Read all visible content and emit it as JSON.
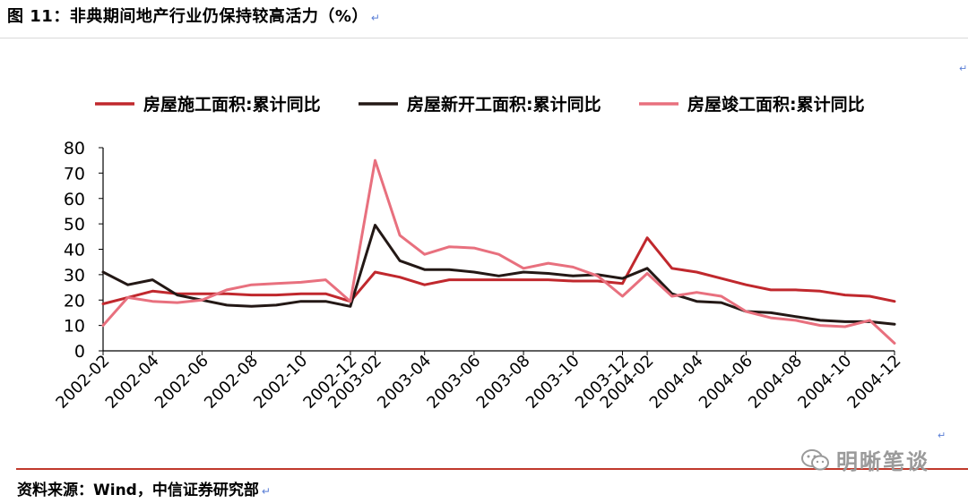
{
  "figure": {
    "title": "图 11：非典期间地产行业仍保持较高活力（%）",
    "source": "资料来源：Wind，中信证券研究部",
    "watermark": "明晰笔谈"
  },
  "chart_data": {
    "type": "line",
    "title": "",
    "xlabel": "",
    "ylabel": "",
    "ylim": [
      0,
      80
    ],
    "yticks": [
      0,
      10,
      20,
      30,
      40,
      50,
      60,
      70,
      80
    ],
    "grid": false,
    "legend_position": "top",
    "x": [
      "2002-02",
      "2002-03",
      "2002-04",
      "2002-05",
      "2002-06",
      "2002-07",
      "2002-08",
      "2002-09",
      "2002-10",
      "2002-11",
      "2002-12",
      "2003-02",
      "2003-03",
      "2003-04",
      "2003-05",
      "2003-06",
      "2003-07",
      "2003-08",
      "2003-09",
      "2003-10",
      "2003-11",
      "2003-12",
      "2004-02",
      "2004-03",
      "2004-04",
      "2004-05",
      "2004-06",
      "2004-07",
      "2004-08",
      "2004-09",
      "2004-10",
      "2004-11",
      "2004-12"
    ],
    "tick_labels": [
      "2002-02",
      "2002-04",
      "2002-06",
      "2002-08",
      "2002-10",
      "2002-12",
      "2003-02",
      "2003-04",
      "2003-06",
      "2003-08",
      "2003-10",
      "2003-12",
      "2004-02",
      "2004-04",
      "2004-06",
      "2004-08",
      "2004-10",
      "2004-12"
    ],
    "series": [
      {
        "name": "房屋施工面积:累计同比",
        "color": "#c0282d",
        "values": [
          18.5,
          21,
          23.5,
          22.5,
          22.5,
          22.5,
          22,
          22,
          22.5,
          22.5,
          19.5,
          31,
          29,
          26,
          28,
          28,
          28,
          28,
          28,
          27.5,
          27.5,
          26.5,
          44.5,
          32.5,
          31,
          28.5,
          26,
          24,
          24,
          23.5,
          22,
          21.5,
          19.5
        ]
      },
      {
        "name": "房屋新开工面积:累计同比",
        "color": "#231815",
        "values": [
          31,
          26,
          28,
          22,
          20,
          18,
          17.5,
          18,
          19.5,
          19.5,
          17.5,
          49.5,
          35.5,
          32,
          32,
          31,
          29.5,
          31,
          30.5,
          29.5,
          30,
          28.5,
          32.5,
          22.5,
          19.5,
          19,
          15.5,
          15,
          13.5,
          12,
          11.5,
          11.5,
          10.5
        ]
      },
      {
        "name": "房屋竣工面积:累计同比",
        "color": "#e8707e",
        "values": [
          10,
          21,
          19.5,
          19,
          20,
          24,
          26,
          26.5,
          27,
          28,
          19.5,
          75,
          45.5,
          38,
          41,
          40.5,
          38,
          32.5,
          34.5,
          33,
          29.5,
          21.5,
          30.5,
          21.5,
          23,
          21.5,
          15.5,
          13,
          12,
          10,
          9.5,
          12,
          3
        ]
      }
    ]
  }
}
